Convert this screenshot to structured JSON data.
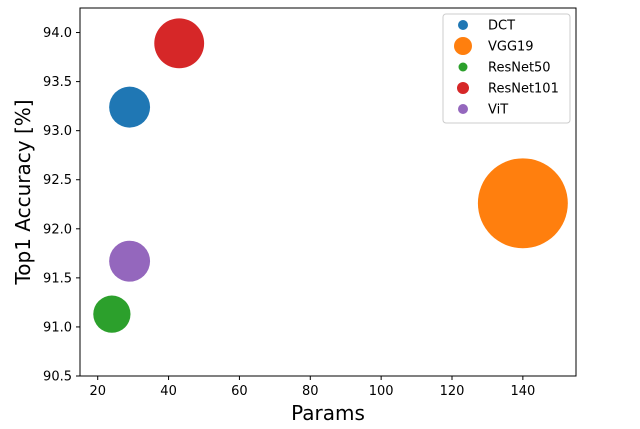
{
  "chart_data": {
    "type": "scatter",
    "xlabel": "Params",
    "ylabel": "Top1 Accuracy [%]",
    "xlim": [
      15,
      155
    ],
    "ylim": [
      90.5,
      94.25
    ],
    "xticks": [
      20,
      40,
      60,
      80,
      100,
      120,
      140
    ],
    "yticks": [
      90.5,
      91.0,
      91.5,
      92.0,
      92.5,
      93.0,
      93.5,
      94.0
    ],
    "ytick_labels": [
      "90.5",
      "91.0",
      "91.5",
      "92.0",
      "92.5",
      "93.0",
      "93.5",
      "94.0"
    ],
    "marker_size_encodes": "Params",
    "legend_position": "upper right",
    "series": [
      {
        "name": "DCT",
        "x": 29,
        "y": 93.24,
        "color": "#1f77b4",
        "legend_marker": 10
      },
      {
        "name": "VGG19",
        "x": 140,
        "y": 92.26,
        "color": "#ff7f0e",
        "legend_marker": 18
      },
      {
        "name": "ResNet50",
        "x": 24,
        "y": 91.13,
        "color": "#2ca02c",
        "legend_marker": 9
      },
      {
        "name": "ResNet101",
        "x": 43,
        "y": 93.89,
        "color": "#d62728",
        "legend_marker": 12
      },
      {
        "name": "ViT",
        "x": 29,
        "y": 91.67,
        "color": "#9467bd",
        "legend_marker": 10
      }
    ]
  }
}
